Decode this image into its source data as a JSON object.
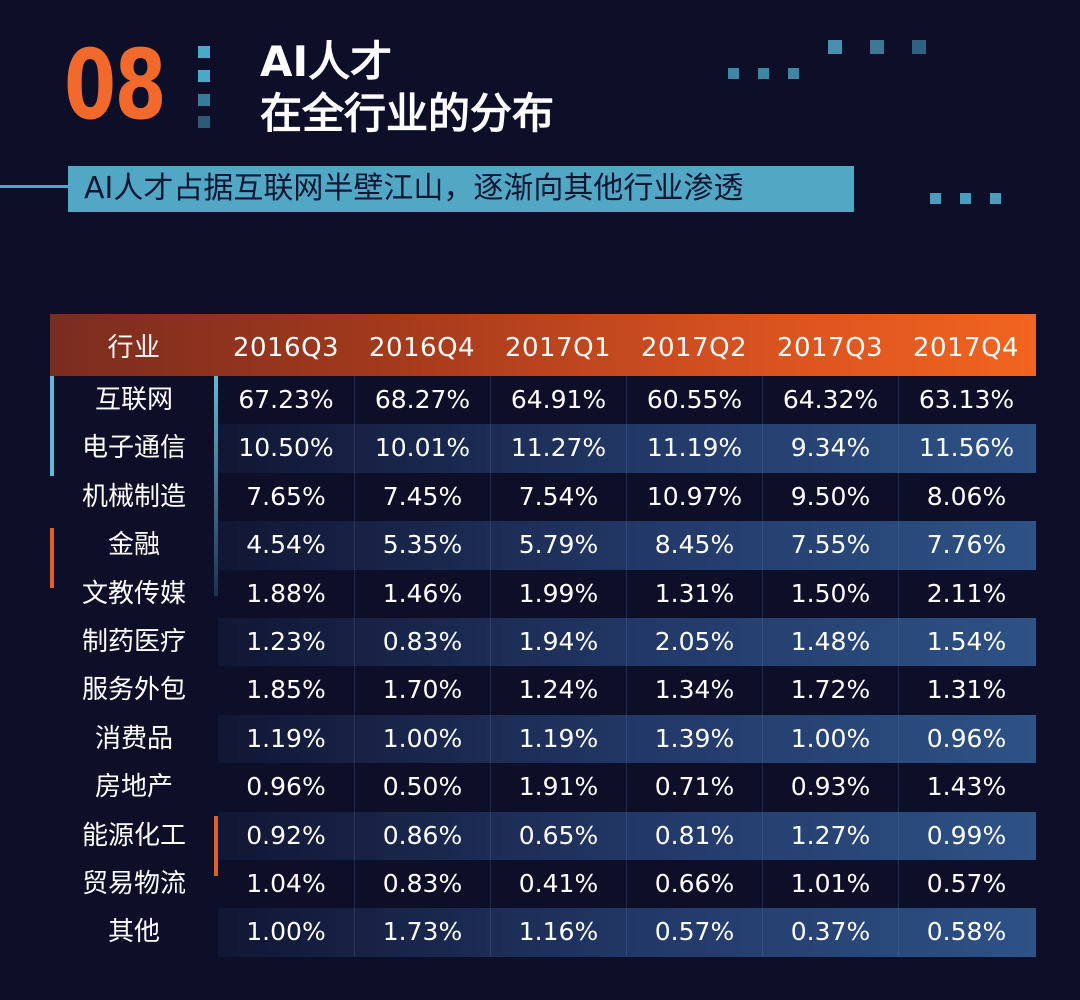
{
  "header": {
    "section_number": "08",
    "title_line1": "AI人才",
    "title_line2": "在全行业的分布",
    "subtitle": "AI人才占据互联网半壁江山，逐渐向其他行业渗透"
  },
  "colors": {
    "background": "#0d0f29",
    "accent_orange": "#f26a2b",
    "accent_blue": "#52a7c5",
    "header_gradient_start": "#7a2c1f",
    "header_gradient_end": "#f2641f"
  },
  "chart_data": {
    "type": "table",
    "columns": [
      "行业",
      "2016Q3",
      "2016Q4",
      "2017Q1",
      "2017Q2",
      "2017Q3",
      "2017Q4"
    ],
    "rows": [
      [
        "互联网",
        "67.23%",
        "68.27%",
        "64.91%",
        "60.55%",
        "64.32%",
        "63.13%"
      ],
      [
        "电子通信",
        "10.50%",
        "10.01%",
        "11.27%",
        "11.19%",
        "9.34%",
        "11.56%"
      ],
      [
        "机械制造",
        "7.65%",
        "7.45%",
        "7.54%",
        "10.97%",
        "9.50%",
        "8.06%"
      ],
      [
        "金融",
        "4.54%",
        "5.35%",
        "5.79%",
        "8.45%",
        "7.55%",
        "7.76%"
      ],
      [
        "文教传媒",
        "1.88%",
        "1.46%",
        "1.99%",
        "1.31%",
        "1.50%",
        "2.11%"
      ],
      [
        "制药医疗",
        "1.23%",
        "0.83%",
        "1.94%",
        "2.05%",
        "1.48%",
        "1.54%"
      ],
      [
        "服务外包",
        "1.85%",
        "1.70%",
        "1.24%",
        "1.34%",
        "1.72%",
        "1.31%"
      ],
      [
        "消费品",
        "1.19%",
        "1.00%",
        "1.19%",
        "1.39%",
        "1.00%",
        "0.96%"
      ],
      [
        "房地产",
        "0.96%",
        "0.50%",
        "1.91%",
        "0.71%",
        "0.93%",
        "1.43%"
      ],
      [
        "能源化工",
        "0.92%",
        "0.86%",
        "0.65%",
        "0.81%",
        "1.27%",
        "0.99%"
      ],
      [
        "贸易物流",
        "1.04%",
        "0.83%",
        "0.41%",
        "0.66%",
        "1.01%",
        "0.57%"
      ],
      [
        "其他",
        "1.00%",
        "1.73%",
        "1.16%",
        "0.57%",
        "0.37%",
        "0.58%"
      ]
    ]
  }
}
